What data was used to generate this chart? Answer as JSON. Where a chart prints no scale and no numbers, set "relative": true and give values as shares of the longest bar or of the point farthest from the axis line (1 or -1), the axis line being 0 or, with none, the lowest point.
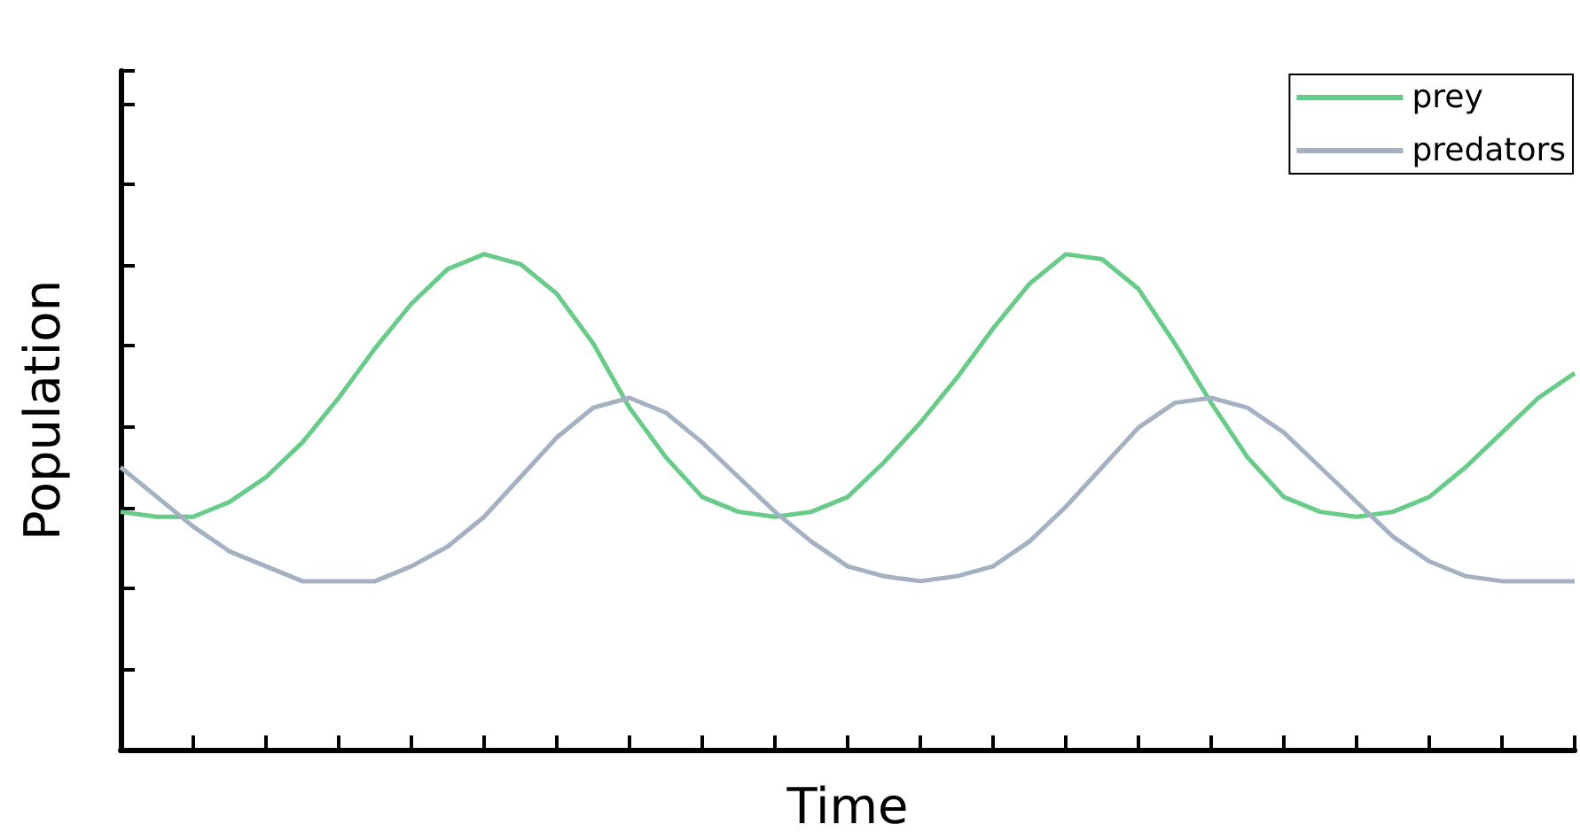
{
  "chart_data": {
    "type": "line",
    "xlabel": "Time",
    "ylabel": "Population",
    "relative": true,
    "legend": "top right",
    "grid": false,
    "marker": "none",
    "line_style": "solid",
    "categories": [
      null,
      null,
      null,
      null,
      null,
      null,
      null,
      null,
      null,
      null,
      null,
      null,
      null,
      null,
      null,
      null,
      null,
      null,
      null,
      null,
      null,
      null,
      null,
      null,
      null,
      null,
      null,
      null,
      null,
      null,
      null,
      null,
      null,
      null,
      null,
      null,
      null,
      null,
      null,
      null,
      null
    ],
    "series": [
      {
        "name": "prey",
        "color": "#66cc88",
        "values": [
          0.48,
          0.47,
          0.47,
          0.5,
          0.55,
          0.62,
          0.71,
          0.81,
          0.9,
          0.97,
          1,
          0.98,
          0.92,
          0.82,
          0.69,
          0.59,
          0.51,
          0.48,
          0.47,
          0.48,
          0.51,
          0.58,
          0.66,
          0.75,
          0.85,
          0.94,
          1,
          0.99,
          0.93,
          0.82,
          0.7,
          0.59,
          0.51,
          0.48,
          0.47,
          0.48,
          0.51,
          0.57,
          0.64,
          0.71,
          0.76
        ]
      },
      {
        "name": "predators",
        "color": "#a3b1c2",
        "values": [
          0.57,
          0.51,
          0.45,
          0.4,
          0.37,
          0.34,
          0.34,
          0.34,
          0.37,
          0.41,
          0.47,
          0.55,
          0.63,
          0.69,
          0.71,
          0.68,
          0.62,
          0.55,
          0.48,
          0.42,
          0.37,
          0.35,
          0.34,
          0.35,
          0.37,
          0.42,
          0.49,
          0.57,
          0.65,
          0.7,
          0.71,
          0.69,
          0.64,
          0.57,
          0.5,
          0.43,
          0.38,
          0.35,
          0.34,
          0.34,
          0.34
        ]
      }
    ]
  }
}
